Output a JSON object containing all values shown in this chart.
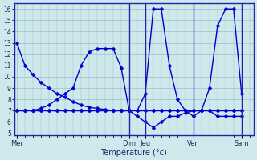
{
  "background_color": "#cfe8ec",
  "grid_color": "#9bbfc8",
  "line_color": "#0000cc",
  "marker": "D",
  "markersize": 2.5,
  "linewidth": 1.0,
  "xlabel": "Température (°c)",
  "ylim": [
    4.8,
    16.5
  ],
  "yticks": [
    5,
    6,
    7,
    8,
    9,
    10,
    11,
    12,
    13,
    14,
    15,
    16
  ],
  "day_labels": [
    "Mer",
    "Dim",
    "Jeu",
    "Ven",
    "Sam"
  ],
  "day_x": [
    0,
    14,
    16,
    22,
    28
  ],
  "xlim": [
    -0.3,
    29.5
  ],
  "lines": [
    {
      "x": [
        0,
        1,
        2,
        3,
        4,
        5,
        6,
        7,
        8,
        9,
        10,
        11,
        12,
        13,
        14,
        15,
        16,
        17,
        18,
        19,
        20,
        21,
        22,
        23,
        24,
        25,
        26,
        27,
        28
      ],
      "y": [
        13,
        11,
        10.2,
        9.5,
        9.0,
        8.5,
        8.2,
        7.8,
        7.5,
        7.3,
        7.2,
        7.1,
        7.0,
        7.0,
        7.0,
        7.0,
        7.0,
        7.0,
        7.0,
        7.0,
        7.0,
        7.0,
        7.0,
        7.0,
        7.0,
        7.0,
        7.0,
        7.0,
        7.0
      ]
    },
    {
      "x": [
        0,
        1,
        2,
        3,
        4,
        5,
        6,
        7,
        8,
        9,
        10,
        11,
        12,
        13,
        14,
        15,
        16,
        17,
        18,
        19,
        20,
        21,
        22,
        23,
        24,
        25,
        26,
        27,
        28
      ],
      "y": [
        7,
        7,
        7,
        7,
        7,
        7,
        7,
        7,
        7,
        7,
        7,
        7,
        7,
        7,
        7,
        7,
        7,
        7,
        7,
        7,
        7,
        7,
        7,
        7,
        7,
        7,
        7,
        7,
        7
      ]
    },
    {
      "x": [
        0,
        1,
        2,
        3,
        4,
        5,
        6,
        7,
        8,
        9,
        10,
        11,
        12,
        13,
        14,
        15,
        16,
        17,
        18,
        19,
        20,
        21,
        22,
        23,
        24,
        25,
        26,
        27,
        28
      ],
      "y": [
        7,
        7,
        7,
        7.2,
        7.5,
        8.0,
        8.5,
        9.0,
        11,
        12.2,
        12.5,
        12.5,
        12.5,
        10.8,
        7,
        6.5,
        6,
        5.5,
        6,
        6.5,
        6.5,
        6.8,
        7.0,
        7.0,
        7.0,
        6.5,
        6.5,
        6.5,
        6.5
      ]
    },
    {
      "x": [
        0,
        1,
        2,
        3,
        4,
        5,
        6,
        7,
        8,
        9,
        10,
        11,
        12,
        13,
        14,
        15,
        16,
        17,
        18,
        19,
        20,
        21,
        22,
        23,
        24,
        25,
        26,
        27,
        28
      ],
      "y": [
        7,
        7,
        7,
        7,
        7,
        7,
        7,
        7,
        7,
        7,
        7,
        7,
        7,
        7,
        7,
        7,
        8.5,
        16,
        16,
        11,
        8,
        7,
        6.5,
        7,
        9,
        14.5,
        16,
        16,
        8.5
      ]
    }
  ]
}
